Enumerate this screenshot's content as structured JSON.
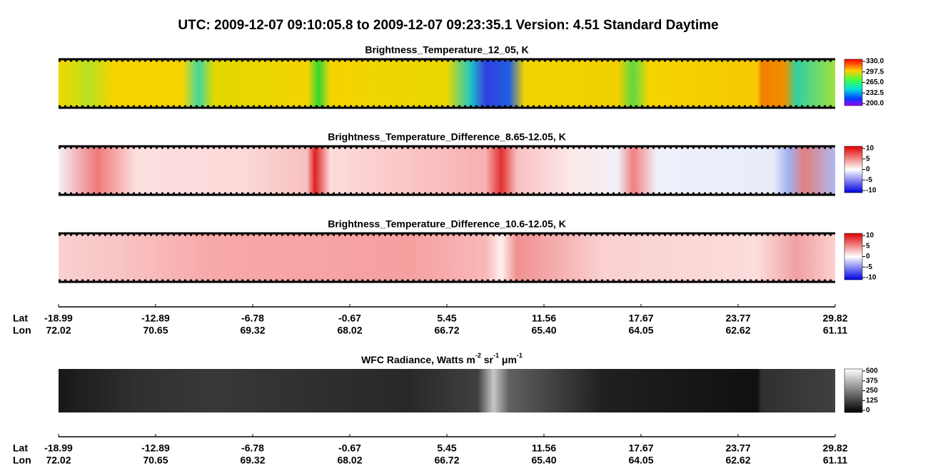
{
  "title": "UTC:  2009-12-07   09:10:05.8  to  2009-12-07   09:23:35.1    Version: 4.51  Standard Daytime",
  "panels": [
    {
      "title": "Brightness_Temperature_12_05, K",
      "colorbar": [
        "330.0",
        "297.5",
        "265.0",
        "232.5",
        "200.0"
      ]
    },
    {
      "title": "Brightness_Temperature_Difference_8.65-12.05, K",
      "colorbar": [
        "10",
        "5",
        "0",
        "-5",
        "-10"
      ]
    },
    {
      "title": "Brightness_Temperature_Difference_10.6-12.05, K",
      "colorbar": [
        "10",
        "5",
        "0",
        "-5",
        "-10"
      ]
    }
  ],
  "wfc": {
    "title": [
      "WFC Radiance, Watts m",
      "-2",
      " sr",
      "-1",
      " μm",
      "-1"
    ],
    "colorbar": [
      "500",
      "375",
      "250",
      "125",
      "0"
    ]
  },
  "axis": {
    "lat_label": "Lat",
    "lon_label": "Lon",
    "lat": [
      "-18.99",
      "-12.89",
      "-6.78",
      "-0.67",
      "5.45",
      "11.56",
      "17.67",
      "23.77",
      "29.82"
    ],
    "lon": [
      "72.02",
      "70.65",
      "69.32",
      "68.02",
      "66.72",
      "65.40",
      "64.05",
      "62.62",
      "61.11"
    ]
  }
}
